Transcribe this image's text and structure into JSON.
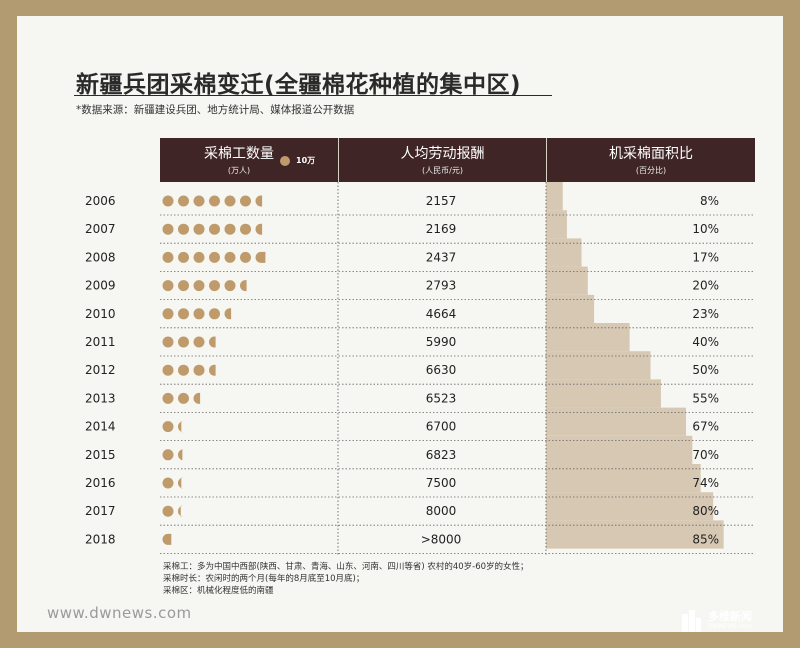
{
  "title": "新疆兵团采棉变迁(全疆棉花种植的集中区)",
  "source": "*数据来源：新疆建设兵团、地方统计局、媒体报道公开数据",
  "header": {
    "col1": "采棉工数量",
    "col1_sub": "(万人)",
    "legend": "10万",
    "col2": "人均劳动报酬",
    "col2_sub": "(人民币/元)",
    "col3": "机采棉面积比",
    "col3_sub": "(百分比)"
  },
  "colors": {
    "frame": "#b39b71",
    "header_bg": "#3f2526",
    "dot": "#bf9b6b",
    "bar": "#d7c8b3"
  },
  "chart_data": {
    "type": "table",
    "years": [
      "2006",
      "2007",
      "2008",
      "2009",
      "2010",
      "2011",
      "2012",
      "2013",
      "2014",
      "2015",
      "2016",
      "2017",
      "2018"
    ],
    "workers_dots_in_units_of_10wan": [
      6.6,
      6.6,
      6.9,
      5.6,
      4.6,
      3.6,
      3.6,
      2.6,
      1.3,
      1.4,
      1.3,
      1.25,
      0.8
    ],
    "pay_labels": [
      "2157",
      "2169",
      "2437",
      "2793",
      "4664",
      "5990",
      "6630",
      "6523",
      "6700",
      "6823",
      "7500",
      "8000",
      ">8000"
    ],
    "machine_pct": [
      8,
      10,
      17,
      20,
      23,
      40,
      50,
      55,
      67,
      70,
      74,
      80,
      85
    ],
    "machine_labels": [
      "8%",
      "10%",
      "17%",
      "20%",
      "23%",
      "40%",
      "50%",
      "55%",
      "67%",
      "70%",
      "74%",
      "80%",
      "85%"
    ]
  },
  "notes": [
    "采棉工：多为中国中西部(陕西、甘肃、青海、山东、河南、四川等省) 农村的40岁-60岁的女性；",
    "采棉时长：农闲时的两个月(每年的8月底至10月底)；",
    "采棉区：机械化程度低的南疆"
  ],
  "footer": {
    "url": "www.dwnews.com",
    "logo_cn": "多维新闻",
    "logo_en": "DWNEWS.com"
  }
}
